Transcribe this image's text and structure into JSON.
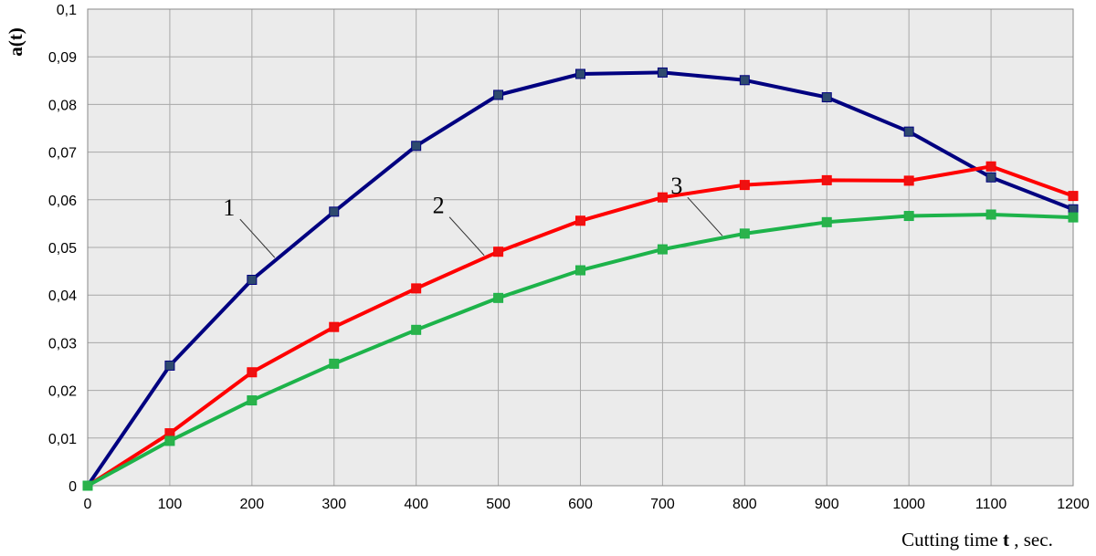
{
  "chart_data": {
    "type": "line",
    "title": "",
    "xlabel": {
      "prefix": "Cutting time ",
      "bold": "t",
      "suffix": " , sec."
    },
    "ylabel": "a(t)",
    "xlim": [
      0,
      1200
    ],
    "ylim": [
      0,
      0.1
    ],
    "x_ticks": [
      0,
      100,
      200,
      300,
      400,
      500,
      600,
      700,
      800,
      900,
      1000,
      1100,
      1200
    ],
    "y_ticks": [
      0,
      0.01,
      0.02,
      0.03,
      0.04,
      0.05,
      0.06,
      0.07,
      0.08,
      0.09,
      0.1
    ],
    "y_tick_labels": [
      "0",
      "0,01",
      "0,02",
      "0,03",
      "0,04",
      "0,05",
      "0,06",
      "0,07",
      "0,08",
      "0,09",
      "0,1"
    ],
    "grid": true,
    "x": [
      0,
      100,
      200,
      300,
      400,
      500,
      600,
      700,
      800,
      900,
      1000,
      1100,
      1200
    ],
    "series": [
      {
        "name": "1",
        "color": "#000080",
        "marker_color": "#2e4a6e",
        "values": [
          0,
          0.0252,
          0.0432,
          0.0575,
          0.0713,
          0.082,
          0.0864,
          0.0867,
          0.0851,
          0.0815,
          0.0743,
          0.0647,
          0.058
        ]
      },
      {
        "name": "2",
        "color": "#ff0000",
        "marker_color": "#ee1111",
        "values": [
          0,
          0.011,
          0.0238,
          0.0333,
          0.0414,
          0.0491,
          0.0556,
          0.0605,
          0.0631,
          0.0641,
          0.064,
          0.067,
          0.0608
        ]
      },
      {
        "name": "3",
        "color": "#1db34a",
        "marker_color": "#2bb24b",
        "values": [
          0,
          0.0094,
          0.0179,
          0.0256,
          0.0327,
          0.0394,
          0.0452,
          0.0496,
          0.0529,
          0.0553,
          0.0566,
          0.0569,
          0.0563
        ]
      }
    ],
    "annotations": [
      {
        "text": "1",
        "series": 0,
        "x": 230
      },
      {
        "text": "2",
        "series": 1,
        "x": 485
      },
      {
        "text": "3",
        "series": 2,
        "x": 775
      }
    ]
  }
}
